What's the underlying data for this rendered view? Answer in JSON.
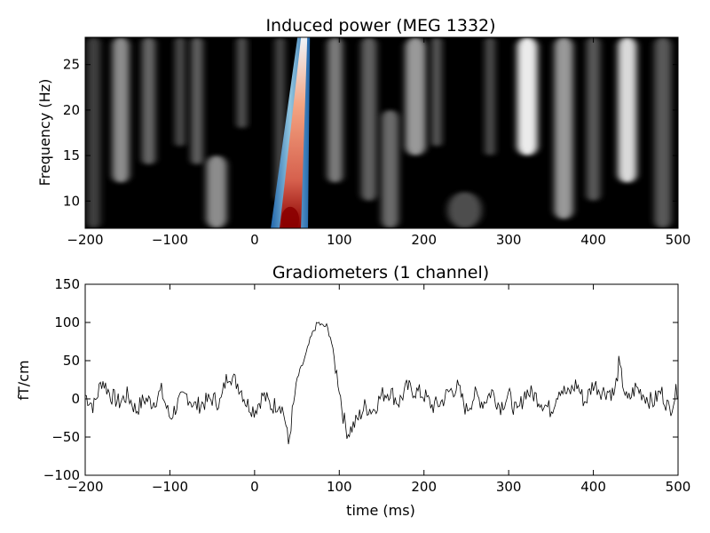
{
  "chart_data": [
    {
      "type": "heatmap",
      "title": "Induced power (MEG 1332)",
      "xlabel": "",
      "ylabel": "Frequency (Hz)",
      "xlim": [
        -200,
        500
      ],
      "ylim": [
        7,
        28
      ],
      "xticks": [
        -200,
        -100,
        0,
        100,
        200,
        300,
        400,
        500
      ],
      "yticks": [
        10,
        15,
        20,
        25
      ],
      "colormap": "black-white background, blue-white-red for strongest power",
      "streaks": [
        {
          "t": -190,
          "w": 8,
          "f0": 7,
          "f1": 28,
          "a": 0.25
        },
        {
          "t": -158,
          "w": 10,
          "f0": 12,
          "f1": 28,
          "a": 0.55
        },
        {
          "t": -125,
          "w": 8,
          "f0": 14,
          "f1": 28,
          "a": 0.4
        },
        {
          "t": -88,
          "w": 6,
          "f0": 16,
          "f1": 28,
          "a": 0.3
        },
        {
          "t": -68,
          "w": 7,
          "f0": 14,
          "f1": 28,
          "a": 0.38
        },
        {
          "t": -45,
          "w": 12,
          "f0": 7,
          "f1": 15,
          "a": 0.55
        },
        {
          "t": -15,
          "w": 6,
          "f0": 18,
          "f1": 28,
          "a": 0.32
        },
        {
          "t": 30,
          "w": 6,
          "f0": 10,
          "f1": 28,
          "a": 0.28
        },
        {
          "t": 95,
          "w": 9,
          "f0": 12,
          "f1": 28,
          "a": 0.48
        },
        {
          "t": 135,
          "w": 9,
          "f0": 10,
          "f1": 28,
          "a": 0.38
        },
        {
          "t": 160,
          "w": 10,
          "f0": 7,
          "f1": 20,
          "a": 0.42
        },
        {
          "t": 190,
          "w": 12,
          "f0": 15,
          "f1": 28,
          "a": 0.6
        },
        {
          "t": 215,
          "w": 6,
          "f0": 16,
          "f1": 28,
          "a": 0.35
        },
        {
          "t": 248,
          "w": 20,
          "f0": 7,
          "f1": 11,
          "a": 0.3
        },
        {
          "t": 278,
          "w": 6,
          "f0": 15,
          "f1": 28,
          "a": 0.3
        },
        {
          "t": 322,
          "w": 12,
          "f0": 15,
          "f1": 28,
          "a": 0.92
        },
        {
          "t": 365,
          "w": 11,
          "f0": 8,
          "f1": 28,
          "a": 0.6
        },
        {
          "t": 400,
          "w": 8,
          "f0": 10,
          "f1": 28,
          "a": 0.35
        },
        {
          "t": 440,
          "w": 11,
          "f0": 12,
          "f1": 28,
          "a": 0.85
        },
        {
          "t": 482,
          "w": 10,
          "f0": 7,
          "f1": 28,
          "a": 0.35
        }
      ],
      "peak": {
        "t_bottom": 40,
        "t_top": 58,
        "f_range": [
          7,
          28
        ],
        "max_at_hz": 8
      }
    },
    {
      "type": "line",
      "title": "Gradiometers (1 channel)",
      "xlabel": "time (ms)",
      "ylabel": "fT/cm",
      "xlim": [
        -200,
        500
      ],
      "ylim": [
        -100,
        150
      ],
      "xticks": [
        -200,
        -100,
        0,
        100,
        200,
        300,
        400,
        500
      ],
      "yticks": [
        -100,
        -50,
        0,
        50,
        100,
        150
      ],
      "color": "#000000",
      "x": [
        -200,
        -190,
        -180,
        -170,
        -160,
        -150,
        -140,
        -130,
        -120,
        -110,
        -100,
        -90,
        -80,
        -70,
        -60,
        -50,
        -40,
        -35,
        -30,
        -25,
        -20,
        -15,
        -10,
        0,
        10,
        20,
        30,
        35,
        40,
        45,
        50,
        55,
        60,
        65,
        70,
        75,
        80,
        85,
        90,
        95,
        100,
        105,
        110,
        120,
        130,
        140,
        150,
        160,
        170,
        180,
        190,
        200,
        210,
        220,
        230,
        240,
        250,
        260,
        270,
        280,
        290,
        300,
        310,
        320,
        330,
        340,
        350,
        360,
        370,
        380,
        390,
        400,
        410,
        420,
        425,
        430,
        440,
        450,
        460,
        470,
        480,
        490,
        500
      ],
      "y": [
        5,
        -10,
        25,
        5,
        -5,
        5,
        -15,
        0,
        -5,
        10,
        -25,
        -5,
        5,
        -10,
        -5,
        0,
        -5,
        20,
        35,
        25,
        20,
        10,
        -5,
        -15,
        5,
        -10,
        -5,
        -20,
        -60,
        -15,
        25,
        40,
        55,
        75,
        90,
        100,
        95,
        95,
        80,
        45,
        15,
        -25,
        -45,
        -30,
        -10,
        -15,
        5,
        10,
        -5,
        15,
        10,
        5,
        -10,
        -5,
        10,
        15,
        -15,
        5,
        -5,
        10,
        -10,
        5,
        -20,
        10,
        5,
        -5,
        -15,
        15,
        5,
        20,
        -5,
        20,
        10,
        10,
        5,
        45,
        -5,
        15,
        5,
        -5,
        10,
        -15,
        15
      ],
      "noise_amplitude": 12
    }
  ]
}
